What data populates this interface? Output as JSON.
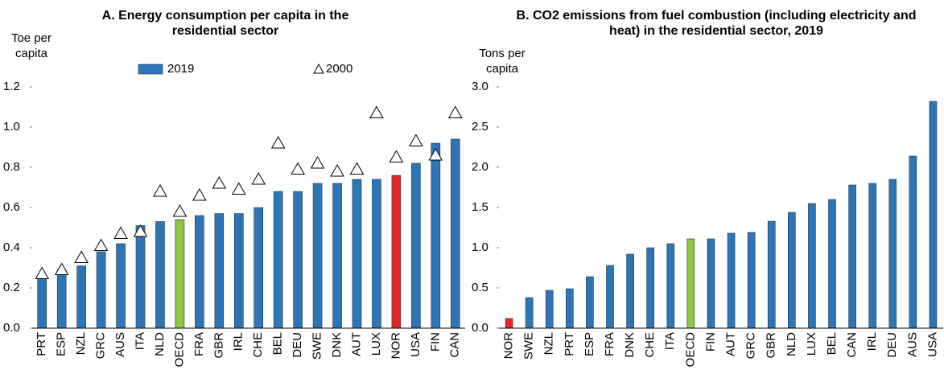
{
  "chart_data": [
    {
      "type": "bar",
      "title": "A. Energy consumption per capita in the residential sector",
      "y_label": "Toe per capita",
      "categories": [
        "PRT",
        "ESP",
        "NZL",
        "GRC",
        "AUS",
        "ITA",
        "NLD",
        "OECD",
        "FRA",
        "GBR",
        "IRL",
        "CHE",
        "BEL",
        "DEU",
        "SWE",
        "DNK",
        "AUT",
        "LUX",
        "NOR",
        "USA",
        "FIN",
        "CAN"
      ],
      "series": [
        {
          "name": "2019",
          "color": "#2e75b6",
          "colors": [
            "#2e75b6",
            "#2e75b6",
            "#2e75b6",
            "#2e75b6",
            "#2e75b6",
            "#2e75b6",
            "#2e75b6",
            "#8dc63f",
            "#2e75b6",
            "#2e75b6",
            "#2e75b6",
            "#2e75b6",
            "#2e75b6",
            "#2e75b6",
            "#2e75b6",
            "#2e75b6",
            "#2e75b6",
            "#2e75b6",
            "#e3262a",
            "#2e75b6",
            "#2e75b6",
            "#2e75b6"
          ],
          "values": [
            0.25,
            0.29,
            0.31,
            0.38,
            0.42,
            0.51,
            0.53,
            0.54,
            0.56,
            0.57,
            0.57,
            0.6,
            0.68,
            0.68,
            0.72,
            0.72,
            0.74,
            0.74,
            0.76,
            0.82,
            0.92,
            0.94
          ]
        },
        {
          "name": "2000",
          "marker": "triangle",
          "color": "#ffffff",
          "values": [
            0.27,
            0.29,
            0.35,
            0.41,
            0.47,
            0.48,
            0.68,
            0.58,
            0.66,
            0.72,
            0.69,
            0.74,
            0.92,
            0.79,
            0.82,
            0.78,
            0.79,
            1.07,
            0.85,
            0.93,
            0.86,
            1.07
          ]
        }
      ],
      "ylim": [
        0,
        1.2
      ],
      "yticks": [
        {
          "value": 0,
          "label": "0.0"
        },
        0.2,
        0.4,
        0.6,
        0.8,
        {
          "value": 1,
          "label": "1.0"
        },
        1.2
      ]
    },
    {
      "type": "bar",
      "title": "B. CO2 emissions from fuel combustion (including electricity and heat) in the residential sector, 2019",
      "y_label": "Tons per capita",
      "categories": [
        "NOR",
        "SWE",
        "NZL",
        "PRT",
        "ESP",
        "FRA",
        "DNK",
        "CHE",
        "ITA",
        "OECD",
        "FIN",
        "AUT",
        "GRC",
        "GBR",
        "NLD",
        "LUX",
        "BEL",
        "CAN",
        "IRL",
        "DEU",
        "AUS",
        "USA"
      ],
      "color": "#2e75b6",
      "colors": [
        "#e3262a",
        "#2e75b6",
        "#2e75b6",
        "#2e75b6",
        "#2e75b6",
        "#2e75b6",
        "#2e75b6",
        "#2e75b6",
        "#2e75b6",
        "#8dc63f",
        "#2e75b6",
        "#2e75b6",
        "#2e75b6",
        "#2e75b6",
        "#2e75b6",
        "#2e75b6",
        "#2e75b6",
        "#2e75b6",
        "#2e75b6",
        "#2e75b6",
        "#2e75b6",
        "#2e75b6"
      ],
      "values": [
        0.12,
        0.38,
        0.47,
        0.49,
        0.64,
        0.78,
        0.92,
        1.0,
        1.05,
        1.11,
        1.11,
        1.18,
        1.19,
        1.33,
        1.44,
        1.55,
        1.6,
        1.78,
        1.8,
        1.85,
        2.14,
        2.82
      ],
      "ylim": [
        0,
        3
      ],
      "yticks": [
        {
          "value": 0,
          "label": "0.0"
        },
        0.5,
        {
          "value": 1,
          "label": "1.0"
        },
        1.5,
        {
          "value": 2,
          "label": "2.0"
        },
        2.5,
        {
          "value": 3,
          "label": "3.0"
        }
      ]
    }
  ]
}
